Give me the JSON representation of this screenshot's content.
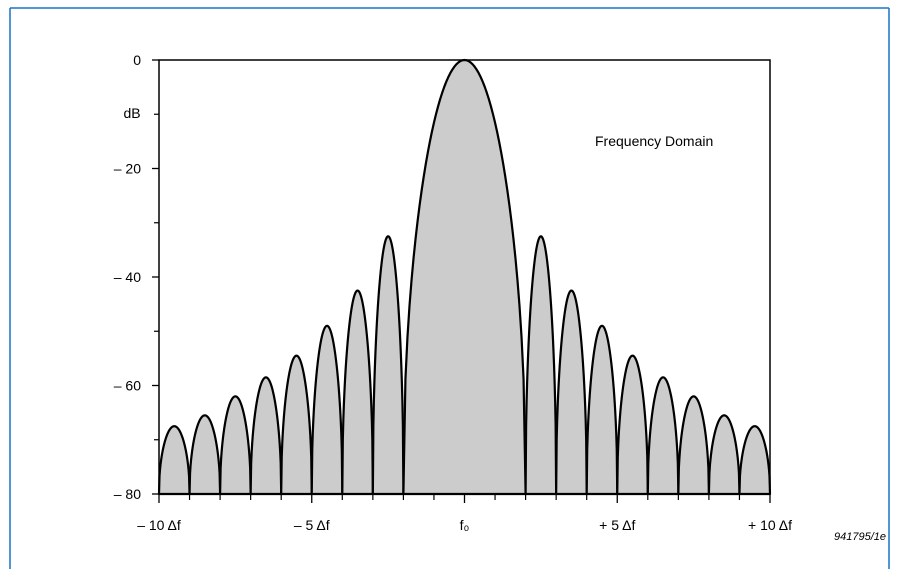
{
  "figure_id": "941795/1e",
  "frame_color": "#1a73c8",
  "chart_data": {
    "type": "area",
    "annotation": "Frequency Domain",
    "ylabel": "dB",
    "ylim": [
      -80,
      0
    ],
    "yticks": [
      0,
      -20,
      -40,
      -60,
      -80
    ],
    "ytick_labels": [
      "0",
      "– 20",
      "– 40",
      "– 60",
      "– 80"
    ],
    "y_minor_ticks": [
      -10,
      -30,
      -50,
      -70
    ],
    "xlim": [
      -10,
      10
    ],
    "x_unit": "Δf",
    "xticks": [
      -10,
      -5,
      0,
      5,
      10
    ],
    "xtick_labels": [
      "– 10 Δf",
      "– 5 Δf",
      "f₀",
      "+ 5 Δf",
      "+ 10 Δf"
    ],
    "x_minor_ticks": [
      -9,
      -8,
      -7,
      -6,
      -4,
      -3,
      -2,
      -1,
      1,
      2,
      3,
      4,
      6,
      7,
      8,
      9
    ],
    "grid": false,
    "fill_color": "#cccccc",
    "line_color": "#000000",
    "lobes": [
      {
        "x_start": -10,
        "x_end": -9,
        "peak_db": -67.5
      },
      {
        "x_start": -9,
        "x_end": -8,
        "peak_db": -65.5
      },
      {
        "x_start": -8,
        "x_end": -7,
        "peak_db": -62
      },
      {
        "x_start": -7,
        "x_end": -6,
        "peak_db": -58.5
      },
      {
        "x_start": -6,
        "x_end": -5,
        "peak_db": -54.5
      },
      {
        "x_start": -5,
        "x_end": -4,
        "peak_db": -49
      },
      {
        "x_start": -4,
        "x_end": -3,
        "peak_db": -42.5
      },
      {
        "x_start": -3,
        "x_end": -2,
        "peak_db": -32.5
      },
      {
        "x_start": -2,
        "x_end": 2,
        "peak_db": 0
      },
      {
        "x_start": 2,
        "x_end": 3,
        "peak_db": -32.5
      },
      {
        "x_start": 3,
        "x_end": 4,
        "peak_db": -42.5
      },
      {
        "x_start": 4,
        "x_end": 5,
        "peak_db": -49
      },
      {
        "x_start": 5,
        "x_end": 6,
        "peak_db": -54.5
      },
      {
        "x_start": 6,
        "x_end": 7,
        "peak_db": -58.5
      },
      {
        "x_start": 7,
        "x_end": 8,
        "peak_db": -62
      },
      {
        "x_start": 8,
        "x_end": 9,
        "peak_db": -65.5
      },
      {
        "x_start": 9,
        "x_end": 10,
        "peak_db": -67.5
      }
    ]
  }
}
